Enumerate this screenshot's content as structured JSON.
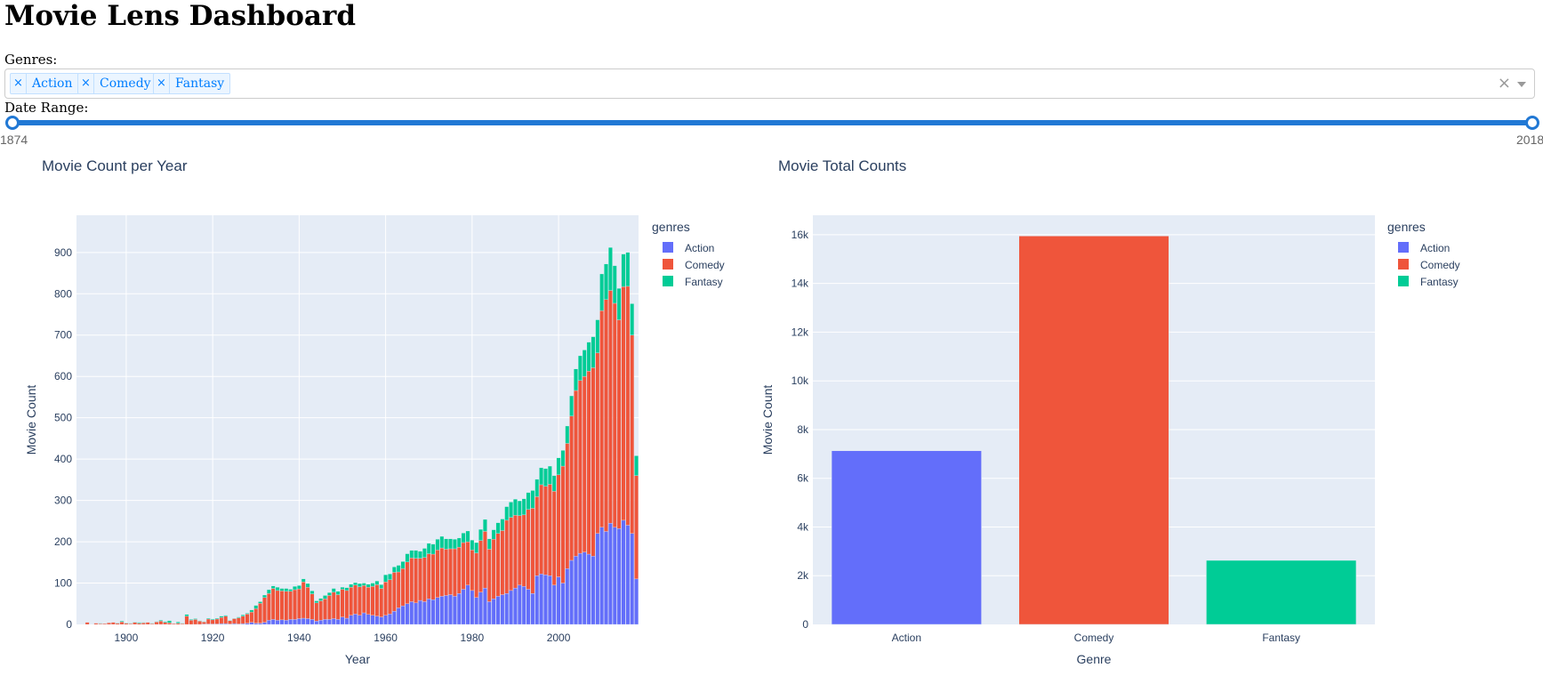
{
  "header": {
    "title": "Movie Lens Dashboard"
  },
  "controls": {
    "genres_label": "Genres:",
    "selected_genres": [
      "Action",
      "Comedy",
      "Fantasy"
    ],
    "tag_remove_glyph": "×",
    "clear_glyph": "×",
    "date_range_label": "Date Range:",
    "date_range": {
      "min": "1874",
      "max": "2018",
      "value": [
        1874,
        2018
      ]
    }
  },
  "colors": {
    "Action": "#636efa",
    "Comedy": "#ef553b",
    "Fantasy": "#00cc96",
    "plot_bg": "#e5ecf6",
    "slider": "#2178d4"
  },
  "chart_data": [
    {
      "type": "bar",
      "barmode": "stack",
      "title": "Movie Count per Year",
      "xlabel": "Year",
      "ylabel": "Movie Count",
      "xlim": [
        1888.5,
        2018.5
      ],
      "ylim": [
        0,
        990
      ],
      "xticks": [
        1900,
        1920,
        1940,
        1960,
        1980,
        2000
      ],
      "yticks": [
        0,
        100,
        200,
        300,
        400,
        500,
        600,
        700,
        800,
        900
      ],
      "legend": {
        "title": "genres",
        "position": "right"
      },
      "x": [
        1891,
        1893,
        1894,
        1895,
        1896,
        1897,
        1898,
        1899,
        1900,
        1901,
        1902,
        1903,
        1904,
        1905,
        1906,
        1907,
        1908,
        1909,
        1910,
        1911,
        1912,
        1913,
        1914,
        1915,
        1916,
        1917,
        1918,
        1919,
        1920,
        1921,
        1922,
        1923,
        1924,
        1925,
        1926,
        1927,
        1928,
        1929,
        1930,
        1931,
        1932,
        1933,
        1934,
        1935,
        1936,
        1937,
        1938,
        1939,
        1940,
        1941,
        1942,
        1943,
        1944,
        1945,
        1946,
        1947,
        1948,
        1949,
        1950,
        1951,
        1952,
        1953,
        1954,
        1955,
        1956,
        1957,
        1958,
        1959,
        1960,
        1961,
        1962,
        1963,
        1964,
        1965,
        1966,
        1967,
        1968,
        1969,
        1970,
        1971,
        1972,
        1973,
        1974,
        1975,
        1976,
        1977,
        1978,
        1979,
        1980,
        1981,
        1982,
        1983,
        1984,
        1985,
        1986,
        1987,
        1988,
        1989,
        1990,
        1991,
        1992,
        1993,
        1994,
        1995,
        1996,
        1997,
        1998,
        1999,
        2000,
        2001,
        2002,
        2003,
        2004,
        2005,
        2006,
        2007,
        2008,
        2009,
        2010,
        2011,
        2012,
        2013,
        2014,
        2015,
        2016,
        2017,
        2018
      ],
      "series": [
        {
          "name": "Action",
          "values": [
            0,
            0,
            0,
            0,
            0,
            0,
            0,
            0,
            0,
            0,
            0,
            0,
            0,
            0,
            0,
            0,
            0,
            0,
            0,
            0,
            0,
            0,
            0,
            0,
            0,
            0,
            1,
            1,
            1,
            1,
            2,
            2,
            1,
            2,
            1,
            2,
            3,
            5,
            3,
            3,
            5,
            10,
            12,
            10,
            11,
            10,
            12,
            12,
            14,
            15,
            14,
            12,
            8,
            10,
            12,
            12,
            14,
            12,
            18,
            15,
            22,
            25,
            22,
            28,
            24,
            22,
            20,
            18,
            22,
            25,
            32,
            40,
            45,
            50,
            55,
            52,
            58,
            55,
            62,
            60,
            65,
            68,
            70,
            72,
            68,
            75,
            85,
            95,
            82,
            65,
            78,
            88,
            55,
            62,
            68,
            72,
            75,
            82,
            88,
            95,
            92,
            85,
            75,
            118,
            122,
            120,
            118,
            95,
            115,
            100,
            135,
            155,
            165,
            172,
            175,
            170,
            165,
            220,
            235,
            225,
            245,
            235,
            232,
            252,
            240,
            220,
            110
          ]
        },
        {
          "name": "Comedy",
          "values": [
            5,
            3,
            2,
            2,
            4,
            5,
            3,
            6,
            3,
            2,
            5,
            3,
            4,
            5,
            2,
            6,
            8,
            5,
            4,
            2,
            3,
            2,
            20,
            10,
            12,
            8,
            5,
            12,
            10,
            12,
            15,
            18,
            8,
            12,
            15,
            18,
            22,
            25,
            35,
            48,
            60,
            65,
            75,
            72,
            70,
            70,
            68,
            72,
            72,
            88,
            76,
            62,
            44,
            47,
            50,
            58,
            64,
            60,
            67,
            67,
            68,
            70,
            69,
            66,
            66,
            70,
            76,
            69,
            81,
            83,
            94,
            87,
            90,
            101,
            106,
            108,
            102,
            107,
            109,
            110,
            115,
            117,
            112,
            111,
            115,
            112,
            113,
            105,
            98,
            108,
            125,
            137,
            127,
            144,
            152,
            155,
            177,
            177,
            176,
            168,
            173,
            193,
            206,
            191,
            216,
            214,
            221,
            227,
            247,
            283,
            303,
            349,
            401,
            418,
            425,
            443,
            456,
            437,
            524,
            561,
            563,
            542,
            505,
            565,
            578,
            480,
            250
          ]
        },
        {
          "name": "Fantasy",
          "values": [
            0,
            0,
            1,
            0,
            0,
            0,
            1,
            2,
            1,
            1,
            1,
            2,
            1,
            0,
            1,
            1,
            2,
            2,
            5,
            0,
            3,
            1,
            4,
            2,
            2,
            1,
            1,
            2,
            2,
            2,
            3,
            2,
            1,
            1,
            2,
            3,
            2,
            5,
            8,
            4,
            6,
            9,
            6,
            8,
            6,
            7,
            5,
            8,
            8,
            7,
            9,
            7,
            5,
            6,
            8,
            7,
            9,
            8,
            5,
            7,
            7,
            6,
            8,
            6,
            7,
            8,
            9,
            9,
            17,
            14,
            13,
            16,
            17,
            20,
            18,
            19,
            17,
            22,
            25,
            24,
            26,
            28,
            25,
            24,
            23,
            22,
            23,
            26,
            24,
            25,
            27,
            29,
            25,
            23,
            26,
            28,
            33,
            37,
            39,
            36,
            39,
            41,
            43,
            42,
            41,
            43,
            44,
            38,
            41,
            38,
            42,
            49,
            52,
            60,
            64,
            70,
            75,
            80,
            89,
            86,
            104,
            91,
            76,
            79,
            82,
            76,
            48
          ]
        }
      ]
    },
    {
      "type": "bar",
      "title": "Movie Total Counts",
      "xlabel": "Genre",
      "ylabel": "Movie Count",
      "categories": [
        "Action",
        "Comedy",
        "Fantasy"
      ],
      "values": [
        7130,
        15950,
        2630
      ],
      "ylim": [
        0,
        16800
      ],
      "yticks": [
        0,
        2000,
        4000,
        6000,
        8000,
        10000,
        12000,
        14000,
        16000
      ],
      "ytick_labels": [
        "0",
        "2k",
        "4k",
        "6k",
        "8k",
        "10k",
        "12k",
        "14k",
        "16k"
      ],
      "legend": {
        "title": "genres",
        "position": "right"
      }
    }
  ]
}
